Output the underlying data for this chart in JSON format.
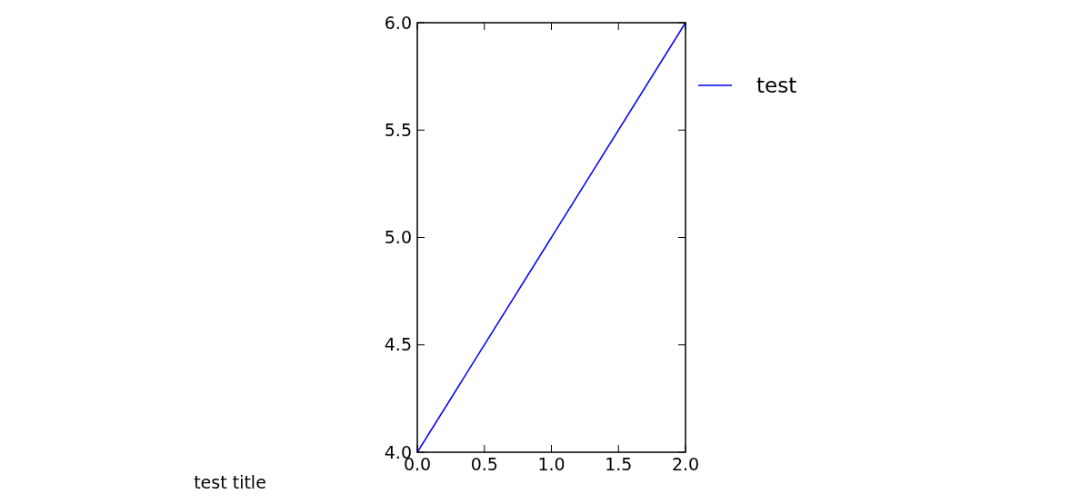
{
  "chart_data": {
    "type": "line",
    "title": "test title",
    "x": [
      0,
      1,
      2
    ],
    "series": [
      {
        "name": "test",
        "color": "#0000ff",
        "values": [
          4,
          5,
          6
        ]
      }
    ],
    "xlim": [
      0,
      2
    ],
    "xticks": [
      {
        "value": 0,
        "label": "0.0"
      },
      {
        "value": 0.5,
        "label": "0.5"
      },
      {
        "value": 1,
        "label": "1.0"
      },
      {
        "value": 1.5,
        "label": "1.5"
      },
      {
        "value": 2,
        "label": "2.0"
      }
    ],
    "ylim": [
      4,
      6
    ],
    "yticks": [
      {
        "value": 4,
        "label": "4.0"
      },
      {
        "value": 4.5,
        "label": "4.5"
      },
      {
        "value": 5,
        "label": "5.0"
      },
      {
        "value": 5.5,
        "label": "5.5"
      },
      {
        "value": 6,
        "label": "6.0"
      }
    ],
    "grid": false,
    "legend": "top right",
    "marker": "none",
    "line_style": "solid"
  }
}
